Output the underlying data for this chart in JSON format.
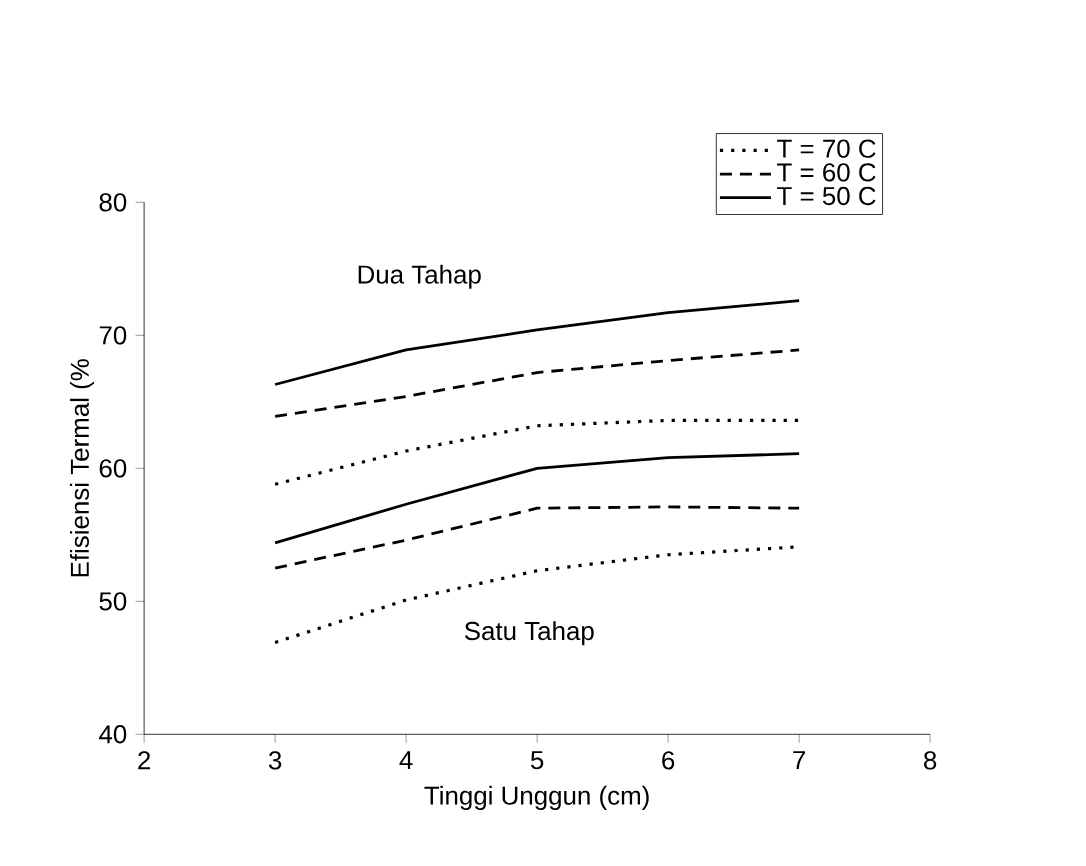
{
  "chart_data": {
    "type": "line",
    "xlabel": "Tinggi Unggun (cm)",
    "ylabel": "Efisiensi Termal (%",
    "x": [
      3,
      4,
      5,
      6,
      7
    ],
    "xlim": [
      2,
      8
    ],
    "xticks": [
      2,
      3,
      4,
      5,
      6,
      7,
      8
    ],
    "ylim": [
      40,
      80
    ],
    "yticks": [
      40,
      50,
      60,
      70,
      80
    ],
    "grid": false,
    "legend": "top right",
    "marker": "none",
    "series": [
      {
        "name": "T = 70 C",
        "color": "#000000",
        "line_style": "dotted",
        "values": [
          58.8,
          61.3,
          63.2,
          63.6,
          63.6
        ]
      },
      {
        "name": "T = 60 C",
        "color": "#000000",
        "line_style": "dashed",
        "values": [
          63.9,
          65.4,
          67.2,
          68.1,
          68.9
        ]
      },
      {
        "name": "T = 50 C",
        "color": "#000000",
        "line_style": "solid",
        "values": [
          66.3,
          68.9,
          70.4,
          71.7,
          72.6
        ]
      },
      {
        "color": "#000000",
        "line_style": "dotted",
        "values": [
          46.9,
          50.1,
          52.3,
          53.5,
          54.1
        ]
      },
      {
        "color": "#000000",
        "line_style": "dashed",
        "values": [
          52.5,
          54.6,
          57.0,
          57.1,
          57.0
        ]
      },
      {
        "color": "#000000",
        "line_style": "solid",
        "values": [
          54.4,
          57.3,
          60.0,
          60.8,
          61.1
        ]
      }
    ],
    "annotations": [
      "Dua Tahap",
      "Satu Tahap"
    ]
  }
}
